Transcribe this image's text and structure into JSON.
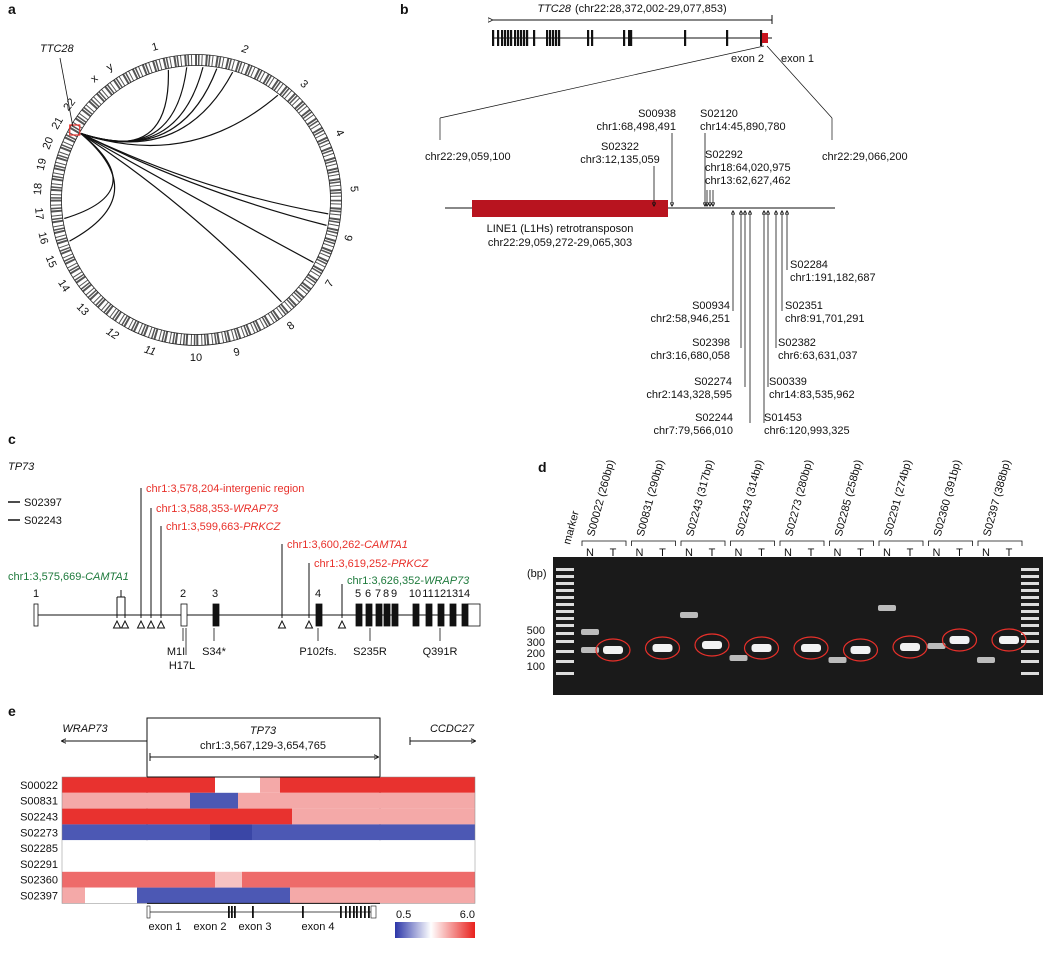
{
  "panel_labels": [
    "a",
    "b",
    "c",
    "d",
    "e"
  ],
  "panel_a": {
    "gene": "TTC28",
    "chromosomes": [
      "1",
      "2",
      "3",
      "4",
      "5",
      "6",
      "7",
      "8",
      "9",
      "10",
      "11",
      "12",
      "13",
      "14",
      "15",
      "16",
      "17",
      "18",
      "19",
      "20",
      "21",
      "22",
      "x",
      "y"
    ]
  },
  "panel_b": {
    "gene": "TTC28",
    "region": "(chr22:28,372,002-29,077,853)",
    "exon_labels": [
      "exon 2",
      "exon 1"
    ],
    "left_coord": "chr22:29,059,100",
    "right_coord": "chr22:29,066,200",
    "element": "LINE1 (L1Hs) retrotransposon",
    "element_coord": "chr22:29,059,272-29,065,303",
    "insertions_above": [
      {
        "sample": "S02322",
        "loci": [
          "chr3:12,135,059"
        ]
      },
      {
        "sample": "S00938",
        "loci": [
          "chr1:68,498,491"
        ]
      },
      {
        "sample": "S02120",
        "loci": [
          "chr14:45,890,780"
        ]
      },
      {
        "sample": "S02292",
        "loci": [
          "chr18:64,020,975",
          "chr13:62,627,462"
        ]
      }
    ],
    "insertions_below": [
      {
        "sample": "S02284",
        "loci": [
          "chr1:191,182,687"
        ]
      },
      {
        "sample": "S00934",
        "loci": [
          "chr2:58,946,251"
        ]
      },
      {
        "sample": "S02351",
        "loci": [
          "chr8:91,701,291"
        ]
      },
      {
        "sample": "S02398",
        "loci": [
          "chr3:16,680,058"
        ]
      },
      {
        "sample": "S02382",
        "loci": [
          "chr6:63,631,037"
        ]
      },
      {
        "sample": "S02274",
        "loci": [
          "chr2:143,328,595"
        ]
      },
      {
        "sample": "S00339",
        "loci": [
          "chr14:83,535,962"
        ]
      },
      {
        "sample": "S02244",
        "loci": [
          "chr7:79,566,010"
        ]
      },
      {
        "sample": "S01453",
        "loci": [
          "chr6:120,993,325"
        ]
      }
    ]
  },
  "panel_c": {
    "gene": "TP73",
    "legend": [
      {
        "name": "S02397",
        "color": "#1e7a3c",
        "breakpoints": [
          {
            "locus": "chr1:3,575,669-",
            "gene": "CAMTA1"
          },
          {
            "locus": "chr1:3,626,352-",
            "gene": "WRAP73"
          }
        ]
      },
      {
        "name": "S02243",
        "color": "#e8302a",
        "breakpoints": [
          {
            "locus": "chr1:3,578,204-intergenic region"
          },
          {
            "locus": "chr1:3,588,353-",
            "gene": "WRAP73"
          },
          {
            "locus": "chr1:3,599,663-",
            "gene": "PRKCZ"
          },
          {
            "locus": "chr1:3,600,262-",
            "gene": "CAMTA1"
          },
          {
            "locus": "chr1:3,619,252-",
            "gene": "PRKCZ"
          }
        ]
      }
    ],
    "exons": [
      "1",
      "2",
      "3",
      "4",
      "5",
      "6",
      "7",
      "8",
      "9",
      "10",
      "11",
      "12",
      "13",
      "14"
    ],
    "mutations": [
      "M1I",
      "H17L",
      "S34*",
      "P102fs.",
      "S235R",
      "Q391R"
    ]
  },
  "panel_d": {
    "marker": "marker",
    "samples": [
      "S00022 (260bp)",
      "S00831 (290bp)",
      "S02243 (317bp)",
      "S02243 (314bp)",
      "S02273 (280bp)",
      "S02285 (258bp)",
      "S02291 (274bp)",
      "S02360 (391bp)",
      "S02397 (388bp)"
    ],
    "lanes": [
      "N",
      "T"
    ],
    "unit": "(bp)",
    "ladder": [
      500,
      300,
      200,
      100
    ]
  },
  "panel_e": {
    "genes": [
      "WRAP73",
      "TP73",
      "CCDC27"
    ],
    "coord": "chr1:3,567,129-3,654,765",
    "samples": [
      "S00022",
      "S00831",
      "S02243",
      "S02273",
      "S02285",
      "S02291",
      "S02360",
      "S02397"
    ],
    "exons": [
      "exon 1",
      "exon 2",
      "exon 3",
      "exon 4"
    ],
    "scale": [
      "0.5",
      "6.0"
    ]
  }
}
